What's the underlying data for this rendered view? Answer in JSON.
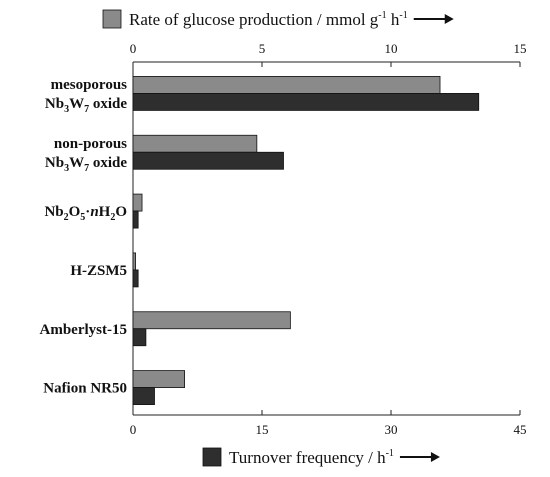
{
  "chart_data": {
    "type": "bar",
    "orientation": "horizontal",
    "categories": [
      "mesoporous Nb3W7 oxide",
      "non-porous Nb3W7 oxide",
      "Nb2O5·nH2O",
      "H-ZSM5",
      "Amberlyst-15",
      "Nafion NR50"
    ],
    "category_labels": [
      {
        "lines": [
          [
            {
              "t": "mesoporous"
            }
          ],
          [
            {
              "t": "Nb"
            },
            {
              "t": "3",
              "sub": true
            },
            {
              "t": "W"
            },
            {
              "t": "7",
              "sub": true
            },
            {
              "t": " oxide"
            }
          ]
        ]
      },
      {
        "lines": [
          [
            {
              "t": "non-porous"
            }
          ],
          [
            {
              "t": "Nb"
            },
            {
              "t": "3",
              "sub": true
            },
            {
              "t": "W"
            },
            {
              "t": "7",
              "sub": true
            },
            {
              "t": " oxide"
            }
          ]
        ]
      },
      {
        "lines": [
          [
            {
              "t": "Nb"
            },
            {
              "t": "2",
              "sub": true
            },
            {
              "t": "O"
            },
            {
              "t": "5",
              "sub": true
            },
            {
              "t": "·"
            },
            {
              "t": "n",
              "italic": true
            },
            {
              "t": "H"
            },
            {
              "t": "2",
              "sub": true
            },
            {
              "t": "O"
            }
          ]
        ]
      },
      {
        "lines": [
          [
            {
              "t": "H-ZSM5"
            }
          ]
        ]
      },
      {
        "lines": [
          [
            {
              "t": "Amberlyst-15"
            }
          ]
        ]
      },
      {
        "lines": [
          [
            {
              "t": "Nafion NR50"
            }
          ]
        ]
      }
    ],
    "series": [
      {
        "name": "Rate of glucose production / mmol g-1 h-1",
        "legend_parts": [
          {
            "t": "Rate of glucose production / mmol g"
          },
          {
            "t": "-1",
            "sup": true
          },
          {
            "t": " h"
          },
          {
            "t": "-1",
            "sup": true
          }
        ],
        "axis": "top",
        "color": "#8a8a8a",
        "values": [
          11.9,
          4.8,
          0.35,
          0.1,
          6.1,
          2.0
        ]
      },
      {
        "name": "Turnover frequency / h-1",
        "legend_parts": [
          {
            "t": "Turnover frequency / h"
          },
          {
            "t": "-1",
            "sup": true
          }
        ],
        "axis": "bottom",
        "color": "#2e2e2e",
        "values": [
          40.2,
          17.5,
          0.6,
          0.6,
          1.5,
          2.5
        ]
      }
    ],
    "top_axis": {
      "min": 0,
      "max": 15,
      "ticks": [
        0,
        5,
        10,
        15
      ]
    },
    "bottom_axis": {
      "min": 0,
      "max": 45,
      "ticks": [
        0,
        15,
        30,
        45
      ]
    },
    "grid": false,
    "legend_placement": "top and bottom"
  }
}
